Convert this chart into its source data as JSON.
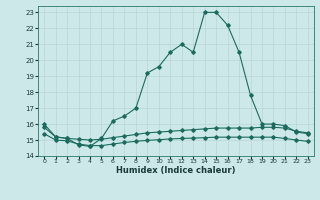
{
  "xlabel": "Humidex (Indice chaleur)",
  "bg_color": "#cde8e8",
  "grid_color": "#b8d4d4",
  "line_color": "#1a6b5e",
  "xlim": [
    -0.5,
    23.5
  ],
  "ylim": [
    14,
    23.4
  ],
  "yticks": [
    14,
    15,
    16,
    17,
    18,
    19,
    20,
    21,
    22,
    23
  ],
  "xticks": [
    0,
    1,
    2,
    3,
    4,
    5,
    6,
    7,
    8,
    9,
    10,
    11,
    12,
    13,
    14,
    15,
    16,
    17,
    18,
    19,
    20,
    21,
    22,
    23
  ],
  "curve1_x": [
    0,
    1,
    2,
    3,
    4,
    5,
    6,
    7,
    8,
    9,
    10,
    11,
    12,
    13,
    14,
    15,
    16,
    17,
    18,
    19,
    20,
    21,
    22,
    23
  ],
  "curve1_y": [
    16.0,
    15.2,
    15.1,
    14.7,
    14.6,
    15.1,
    16.2,
    16.5,
    17.0,
    19.2,
    19.6,
    20.5,
    21.0,
    20.5,
    23.0,
    23.0,
    22.2,
    20.5,
    17.8,
    16.0,
    16.0,
    15.9,
    15.5,
    15.4
  ],
  "curve2_x": [
    0,
    1,
    2,
    3,
    4,
    5,
    6,
    7,
    8,
    9,
    10,
    11,
    12,
    13,
    14,
    15,
    16,
    17,
    18,
    19,
    20,
    21,
    22,
    23
  ],
  "curve2_y": [
    15.8,
    15.2,
    15.1,
    15.05,
    15.0,
    15.05,
    15.15,
    15.25,
    15.35,
    15.45,
    15.5,
    15.55,
    15.6,
    15.65,
    15.7,
    15.75,
    15.75,
    15.75,
    15.75,
    15.8,
    15.8,
    15.75,
    15.55,
    15.45
  ],
  "curve3_x": [
    0,
    1,
    2,
    3,
    4,
    5,
    6,
    7,
    8,
    9,
    10,
    11,
    12,
    13,
    14,
    15,
    16,
    17,
    18,
    19,
    20,
    21,
    22,
    23
  ],
  "curve3_y": [
    15.4,
    15.0,
    14.95,
    14.75,
    14.65,
    14.65,
    14.75,
    14.85,
    14.92,
    14.98,
    15.02,
    15.07,
    15.1,
    15.12,
    15.15,
    15.18,
    15.18,
    15.18,
    15.18,
    15.18,
    15.18,
    15.1,
    15.0,
    14.92
  ]
}
